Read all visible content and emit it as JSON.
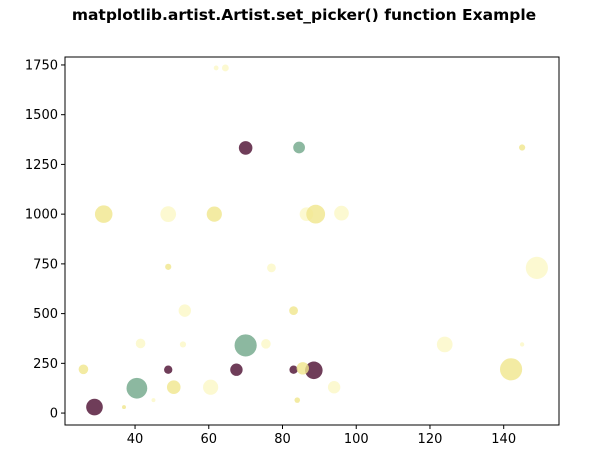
{
  "chart_data": {
    "type": "scatter",
    "title": "matplotlib.artist.Artist.set_picker() function Example",
    "xlabel": "",
    "ylabel": "",
    "xlim": [
      21,
      155
    ],
    "ylim": [
      -60,
      1790
    ],
    "xticks": [
      40,
      60,
      80,
      100,
      120,
      140
    ],
    "yticks": [
      0,
      250,
      500,
      750,
      1000,
      1250,
      1500,
      1750
    ],
    "grid": false,
    "legend": "none",
    "colors": {
      "dark": "#4b0c2f",
      "green": "#6fa688",
      "yellow": "#f0e68c",
      "pale": "#fbf7c6"
    },
    "points": [
      {
        "x": 29,
        "y": 30,
        "s": 180,
        "color": "dark"
      },
      {
        "x": 40.5,
        "y": 125,
        "s": 280,
        "color": "green"
      },
      {
        "x": 70,
        "y": 340,
        "s": 320,
        "color": "green"
      },
      {
        "x": 88.5,
        "y": 215,
        "s": 200,
        "color": "dark"
      },
      {
        "x": 67.5,
        "y": 218,
        "s": 100,
        "color": "dark"
      },
      {
        "x": 70,
        "y": 1333,
        "s": 120,
        "color": "dark"
      },
      {
        "x": 49,
        "y": 218,
        "s": 45,
        "color": "dark"
      },
      {
        "x": 83,
        "y": 218,
        "s": 45,
        "color": "dark"
      },
      {
        "x": 84.5,
        "y": 1335,
        "s": 90,
        "color": "green"
      },
      {
        "x": 26,
        "y": 220,
        "s": 60,
        "color": "yellow"
      },
      {
        "x": 31.5,
        "y": 1000,
        "s": 200,
        "color": "yellow"
      },
      {
        "x": 49,
        "y": 1000,
        "s": 160,
        "color": "pale"
      },
      {
        "x": 61.5,
        "y": 1000,
        "s": 150,
        "color": "yellow"
      },
      {
        "x": 86.5,
        "y": 1000,
        "s": 120,
        "color": "pale"
      },
      {
        "x": 89,
        "y": 1000,
        "s": 230,
        "color": "yellow"
      },
      {
        "x": 96,
        "y": 1005,
        "s": 140,
        "color": "pale"
      },
      {
        "x": 149,
        "y": 730,
        "s": 320,
        "color": "pale"
      },
      {
        "x": 53.5,
        "y": 515,
        "s": 100,
        "color": "pale"
      },
      {
        "x": 83,
        "y": 515,
        "s": 50,
        "color": "yellow"
      },
      {
        "x": 77,
        "y": 730,
        "s": 50,
        "color": "pale"
      },
      {
        "x": 49,
        "y": 735,
        "s": 25,
        "color": "yellow"
      },
      {
        "x": 124,
        "y": 345,
        "s": 160,
        "color": "pale"
      },
      {
        "x": 142,
        "y": 220,
        "s": 320,
        "color": "yellow"
      },
      {
        "x": 50.5,
        "y": 130,
        "s": 120,
        "color": "yellow"
      },
      {
        "x": 60.5,
        "y": 130,
        "s": 150,
        "color": "pale"
      },
      {
        "x": 94,
        "y": 130,
        "s": 100,
        "color": "pale"
      },
      {
        "x": 85.5,
        "y": 225,
        "s": 100,
        "color": "yellow"
      },
      {
        "x": 41.5,
        "y": 350,
        "s": 60,
        "color": "pale"
      },
      {
        "x": 53,
        "y": 345,
        "s": 25,
        "color": "pale"
      },
      {
        "x": 75.5,
        "y": 348,
        "s": 60,
        "color": "pale"
      },
      {
        "x": 145,
        "y": 1335,
        "s": 25,
        "color": "yellow"
      },
      {
        "x": 145,
        "y": 345,
        "s": 12,
        "color": "pale"
      },
      {
        "x": 64.5,
        "y": 1735,
        "s": 30,
        "color": "pale"
      },
      {
        "x": 62,
        "y": 1735,
        "s": 15,
        "color": "pale"
      },
      {
        "x": 84,
        "y": 65,
        "s": 20,
        "color": "yellow"
      },
      {
        "x": 37,
        "y": 30,
        "s": 10,
        "color": "yellow"
      },
      {
        "x": 45,
        "y": 65,
        "s": 10,
        "color": "pale"
      }
    ]
  }
}
